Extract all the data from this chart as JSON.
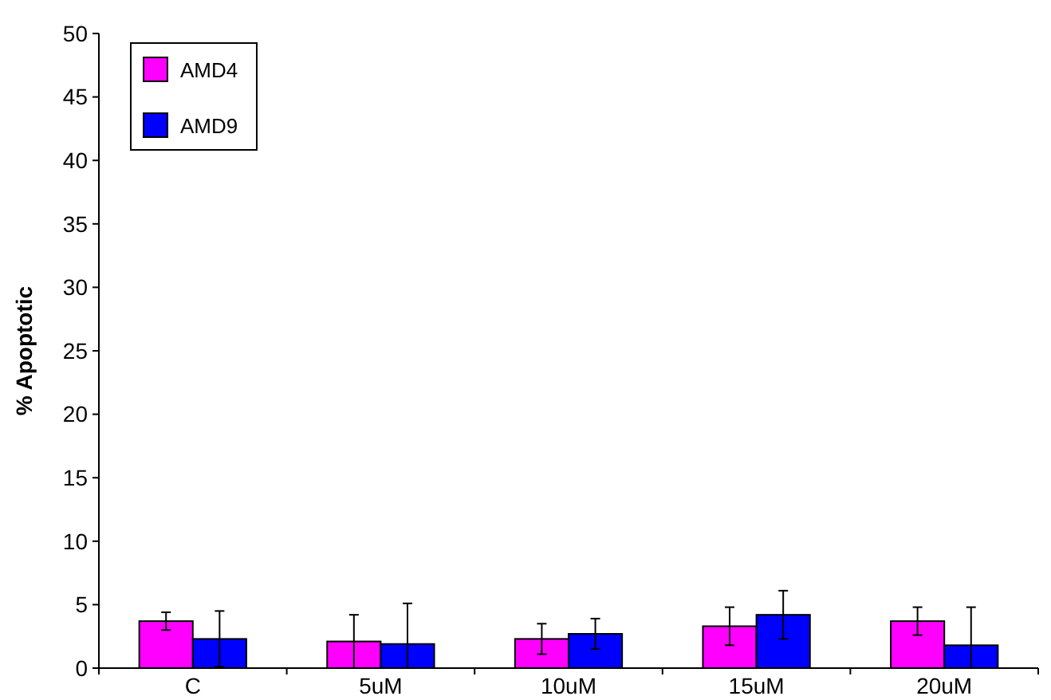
{
  "chart_data": {
    "type": "bar",
    "ylabel": "% Apoptotic",
    "categories": [
      "C",
      "5uM",
      "10uM",
      "15uM",
      "20uM"
    ],
    "series": [
      {
        "name": "AMD4",
        "color": "#ff00ff",
        "values": [
          3.7,
          2.1,
          2.3,
          3.3,
          3.7
        ],
        "errors": [
          0.7,
          2.1,
          1.2,
          1.5,
          1.1
        ]
      },
      {
        "name": "AMD9",
        "color": "#0000ff",
        "values": [
          2.3,
          1.9,
          2.7,
          4.2,
          1.8
        ],
        "errors": [
          2.2,
          [
            0,
            5.1
          ],
          1.2,
          1.9,
          [
            0,
            4.8
          ]
        ]
      }
    ],
    "ylim": [
      0,
      50
    ],
    "yticks": [
      0,
      5,
      10,
      15,
      20,
      25,
      30,
      35,
      40,
      45,
      50
    ],
    "grid": false,
    "legend": "top left"
  }
}
